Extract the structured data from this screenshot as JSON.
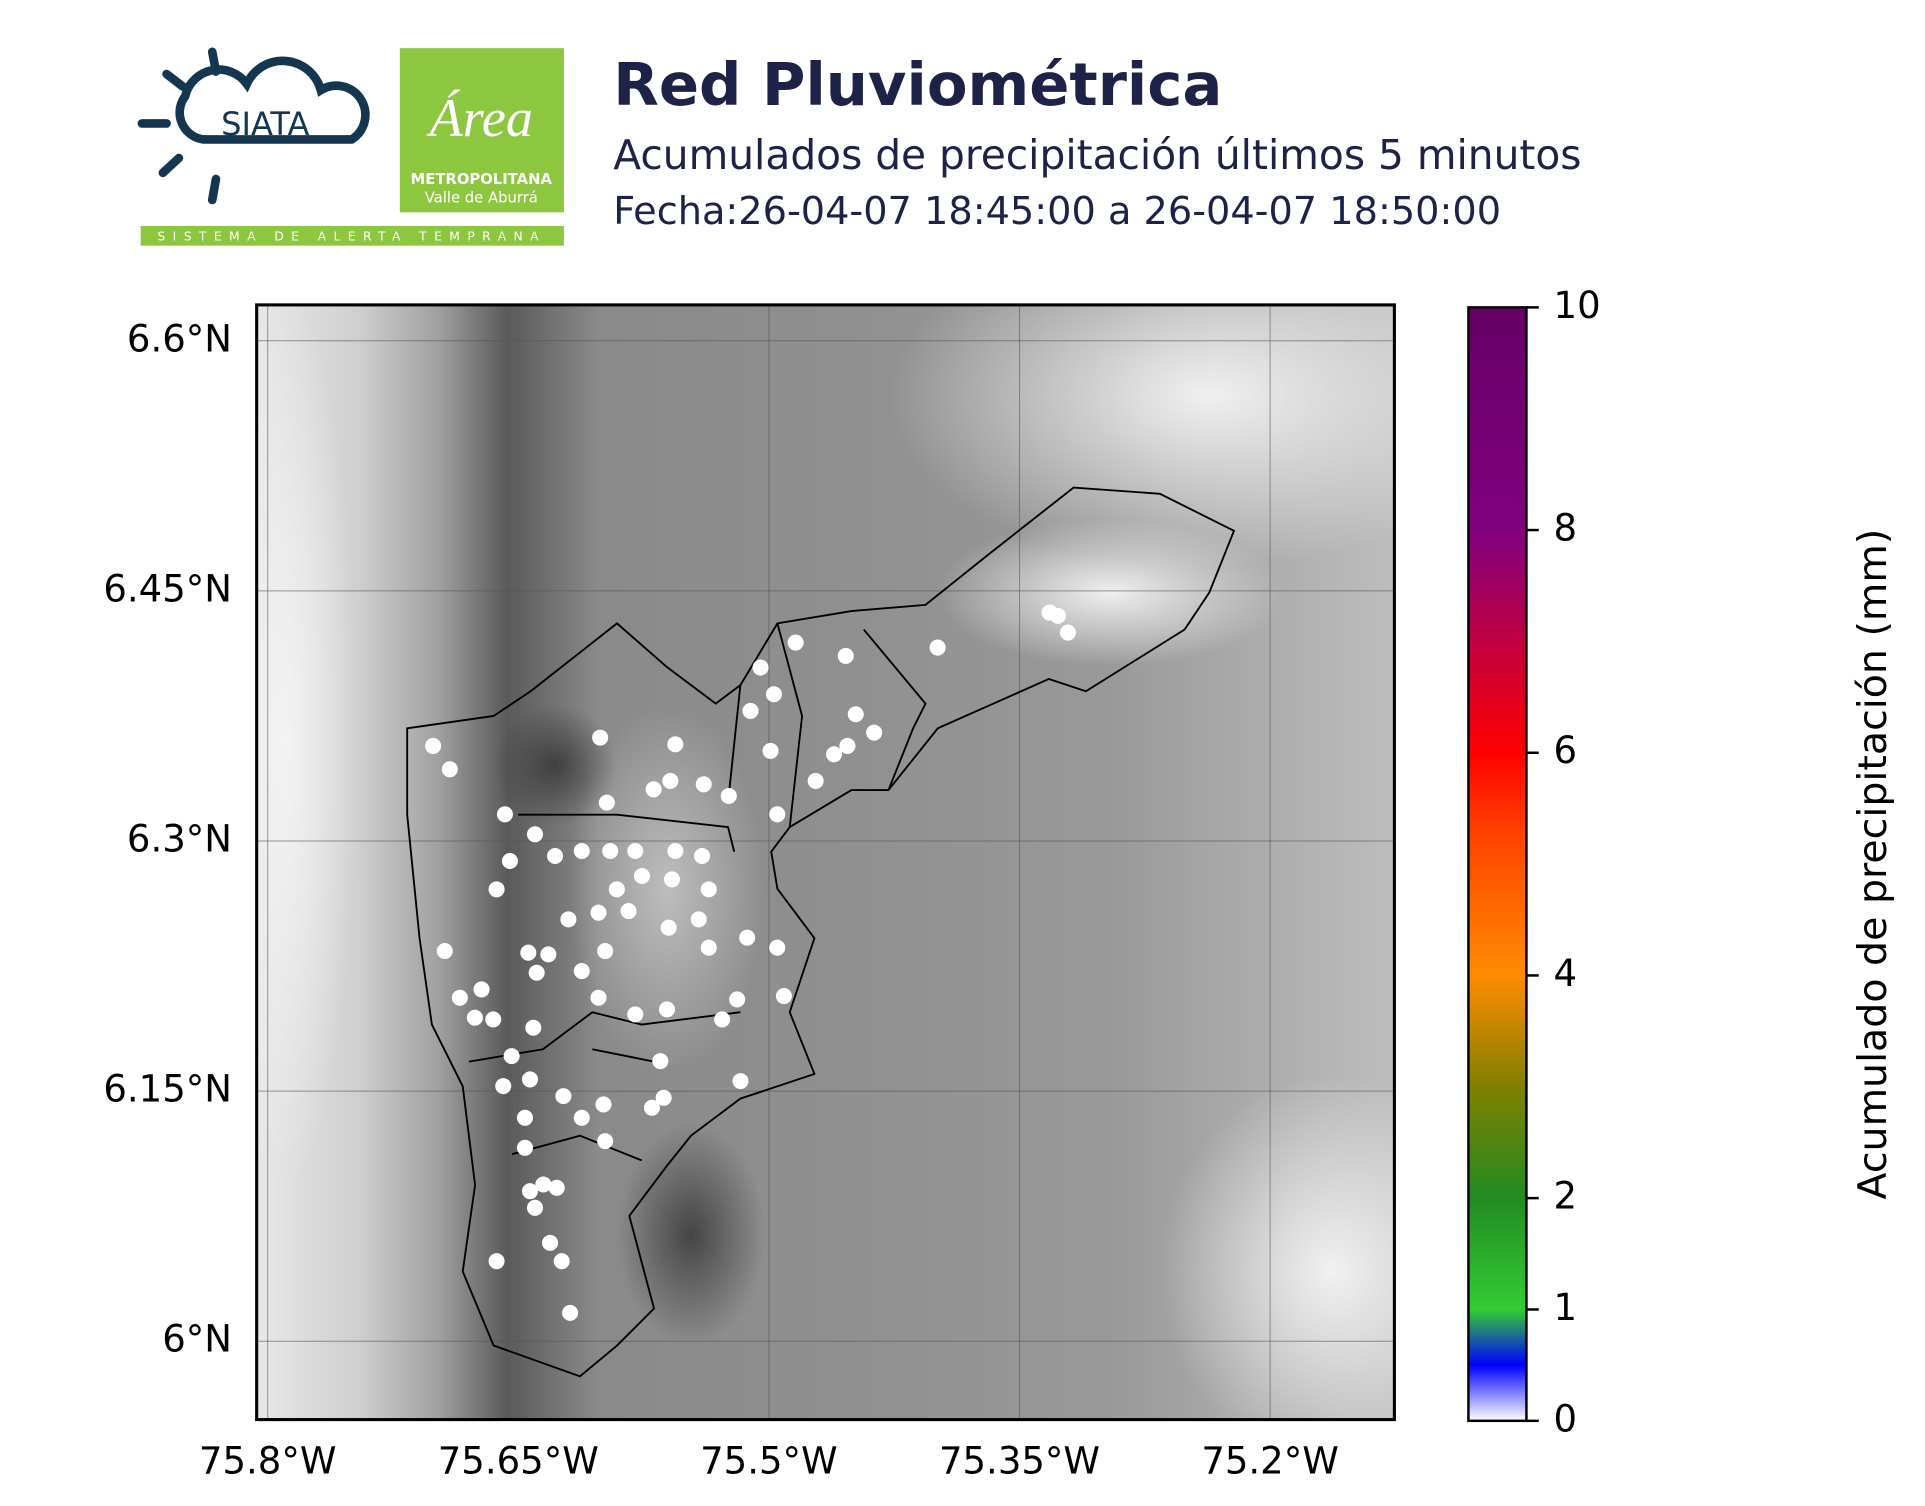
{
  "header": {
    "logos": {
      "siata": "SIATA",
      "area": "Área",
      "metropolitana": "METROPOLITANA",
      "valle": "Valle de Aburrá",
      "tagline": "SISTEMA DE ALERTA TEMPRANA"
    },
    "title": "Red Pluviométrica",
    "subtitle": "Acumulados de precipitación últimos 5 minutos",
    "date": "Fecha:26-04-07 18:45:00 a 26-04-07 18:50:00"
  },
  "chart_data": {
    "type": "scatter",
    "grid": true,
    "xlim": [
      -75.8066,
      -75.1256
    ],
    "ylim": [
      5.953,
      6.6215
    ],
    "xticks": [
      {
        "value": -75.8,
        "label": "75.8°W"
      },
      {
        "value": -75.65,
        "label": "75.65°W"
      },
      {
        "value": -75.5,
        "label": "75.5°W"
      },
      {
        "value": -75.35,
        "label": "75.35°W"
      },
      {
        "value": -75.2,
        "label": "75.2°W"
      }
    ],
    "yticks": [
      {
        "value": 6.0,
        "label": "6°N"
      },
      {
        "value": 6.15,
        "label": "6.15°N"
      },
      {
        "value": 6.3,
        "label": "6.3°N"
      },
      {
        "value": 6.45,
        "label": "6.45°N"
      },
      {
        "value": 6.6,
        "label": "6.6°N"
      }
    ],
    "series": [
      {
        "color": "#ffffff",
        "x": [
          -75.701,
          -75.691,
          -75.658,
          -75.64,
          -75.601,
          -75.556,
          -75.505,
          -75.484,
          -75.454,
          -75.399,
          -75.332,
          -75.327,
          -75.321,
          -75.511,
          -75.497,
          -75.499,
          -75.448,
          -75.437,
          -75.453,
          -75.461,
          -75.472,
          -75.524,
          -75.495,
          -75.597,
          -75.612,
          -75.628,
          -75.595,
          -75.58,
          -75.569,
          -75.559,
          -75.539,
          -75.556,
          -75.54,
          -75.655,
          -75.663,
          -75.694,
          -75.685,
          -75.672,
          -75.676,
          -75.665,
          -75.644,
          -75.632,
          -75.639,
          -75.62,
          -75.602,
          -75.584,
          -75.56,
          -75.542,
          -75.536,
          -75.513,
          -75.495,
          -75.491,
          -75.519,
          -75.561,
          -75.58,
          -75.602,
          -75.612,
          -75.641,
          -75.654,
          -75.643,
          -75.659,
          -75.646,
          -75.623,
          -75.612,
          -75.599,
          -75.598,
          -75.57,
          -75.563,
          -75.565,
          -75.517,
          -75.646,
          -75.643,
          -75.635,
          -75.627,
          -75.64,
          -75.631,
          -75.624,
          -75.663,
          -75.619,
          -75.576,
          -75.558,
          -75.598,
          -75.536,
          -75.591,
          -75.528
        ],
        "values": [
          6.357,
          6.343,
          6.316,
          6.304,
          6.362,
          6.358,
          6.404,
          6.419,
          6.411,
          6.416,
          6.437,
          6.435,
          6.425,
          6.378,
          6.388,
          6.354,
          6.376,
          6.365,
          6.357,
          6.352,
          6.336,
          6.327,
          6.316,
          6.323,
          6.294,
          6.291,
          6.294,
          6.294,
          6.331,
          6.336,
          6.334,
          6.294,
          6.291,
          6.288,
          6.271,
          6.234,
          6.206,
          6.211,
          6.194,
          6.193,
          6.233,
          6.232,
          6.221,
          6.253,
          6.257,
          6.258,
          6.248,
          6.253,
          6.236,
          6.242,
          6.236,
          6.207,
          6.205,
          6.199,
          6.196,
          6.206,
          6.222,
          6.188,
          6.171,
          6.157,
          6.153,
          6.134,
          6.147,
          6.134,
          6.142,
          6.12,
          6.14,
          6.146,
          6.168,
          6.156,
          6.116,
          6.09,
          6.094,
          6.092,
          6.08,
          6.059,
          6.048,
          6.048,
          6.017,
          6.279,
          6.277,
          6.234,
          6.271,
          6.271,
          6.193
        ]
      }
    ],
    "colorbar": {
      "label": "Acumulado de precipitación (mm)",
      "lim": [
        0,
        10
      ],
      "ticks": [
        0,
        1,
        2,
        4,
        6,
        8,
        10
      ],
      "stops": [
        [
          0,
          "#ffffff"
        ],
        [
          0.5,
          "#0000ff"
        ],
        [
          1,
          "#33cc33"
        ],
        [
          2,
          "#228b22"
        ],
        [
          3,
          "#808000"
        ],
        [
          4,
          "#ff8c00"
        ],
        [
          5.3,
          "#ff4000"
        ],
        [
          6,
          "#ff0000"
        ],
        [
          7,
          "#c00040"
        ],
        [
          8,
          "#800080"
        ],
        [
          10,
          "#660066"
        ]
      ]
    }
  }
}
